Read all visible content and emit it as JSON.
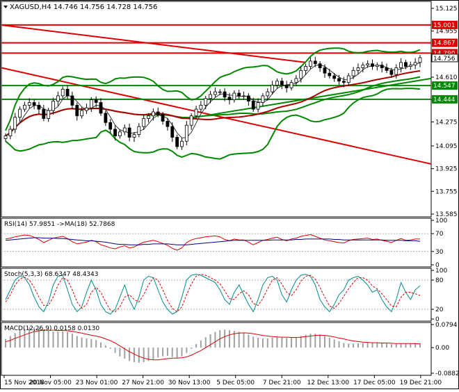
{
  "chart_data": [
    {
      "type": "candlestick",
      "title": "XAGUSD,H4",
      "ohlc_header": [
        "14.746",
        "14.756",
        "14.728",
        "14.756"
      ],
      "yticks": [
        "15.125",
        "14.955",
        "14.790",
        "14.610",
        "14.440",
        "14.275",
        "14.095",
        "13.925",
        "13.755",
        "13.585"
      ],
      "ylim": [
        13.585,
        15.125
      ],
      "current_price": "14.756",
      "horizontal_levels": [
        {
          "label": "15.001",
          "value": 15.001,
          "color": "#dd0000"
        },
        {
          "label": "14.867",
          "value": 14.867,
          "color": "#dd0000"
        },
        {
          "label": "14.790",
          "value": 14.79,
          "color": "#dd0000"
        },
        {
          "label": "14.547",
          "value": 14.547,
          "color": "#008800"
        },
        {
          "label": "14.444",
          "value": 14.444,
          "color": "#008800"
        }
      ],
      "close_series": [
        14.17,
        14.22,
        14.31,
        14.37,
        14.4,
        14.42,
        14.4,
        14.37,
        14.3,
        14.36,
        14.43,
        14.47,
        14.52,
        14.47,
        14.4,
        14.32,
        14.36,
        14.38,
        14.44,
        14.42,
        14.34,
        14.27,
        14.22,
        14.17,
        14.2,
        14.23,
        14.16,
        14.18,
        14.24,
        14.3,
        14.32,
        14.35,
        14.33,
        14.28,
        14.24,
        14.16,
        14.09,
        14.13,
        14.25,
        14.32,
        14.37,
        14.4,
        14.45,
        14.48,
        14.5,
        14.5,
        14.46,
        14.44,
        14.49,
        14.47,
        14.47,
        14.43,
        14.37,
        14.42,
        14.47,
        14.5,
        14.55,
        14.58,
        14.55,
        14.53,
        14.57,
        14.6,
        14.66,
        14.69,
        14.73,
        14.71,
        14.68,
        14.64,
        14.62,
        14.6,
        14.58,
        14.57,
        14.62,
        14.66,
        14.68,
        14.7,
        14.71,
        14.69,
        14.7,
        14.68,
        14.66,
        14.63,
        14.68,
        14.72,
        14.69,
        14.7,
        14.72,
        14.756
      ],
      "colors": {
        "bollinger": "#008800",
        "ma_fast": "#aa0000",
        "ma_slow": "#008800",
        "trendline": "#dd0000",
        "price_label": "#000000"
      }
    },
    {
      "type": "line",
      "title": "RSI(14) 57.9851 ->MA(18) 52.7868",
      "yticks": [
        "100",
        "70",
        "30",
        "0"
      ],
      "ylim": [
        0,
        100
      ],
      "series": [
        {
          "name": "RSI(14)",
          "values": [
            58,
            60,
            63,
            65,
            67,
            66,
            62,
            57,
            50,
            55,
            60,
            62,
            64,
            59,
            52,
            47,
            49,
            51,
            55,
            52,
            45,
            42,
            38,
            36,
            40,
            43,
            38,
            40,
            46,
            51,
            53,
            55,
            52,
            48,
            44,
            37,
            33,
            38,
            50,
            56,
            59,
            61,
            63,
            64,
            65,
            63,
            57,
            54,
            58,
            56,
            56,
            51,
            45,
            50,
            55,
            57,
            60,
            62,
            57,
            54,
            58,
            60,
            64,
            66,
            68,
            64,
            60,
            56,
            54,
            52,
            50,
            49,
            54,
            57,
            58,
            59,
            60,
            57,
            58,
            55,
            53,
            50,
            55,
            59,
            55,
            56,
            58,
            57.99
          ]
        },
        {
          "name": "MA(18)",
          "values": [
            55,
            56,
            57,
            58,
            59,
            60,
            61,
            61,
            60,
            60,
            60,
            59,
            59,
            58,
            57,
            56,
            55,
            54,
            54,
            53,
            52,
            51,
            49,
            47,
            46,
            46,
            45,
            45,
            45,
            46,
            46,
            47,
            47,
            47,
            47,
            46,
            45,
            45,
            45,
            46,
            47,
            48,
            49,
            50,
            51,
            52,
            53,
            54,
            55,
            55,
            55,
            55,
            55,
            55,
            55,
            55,
            56,
            56,
            56,
            56,
            56,
            57,
            57,
            58,
            58,
            58,
            58,
            58,
            58,
            57,
            57,
            56,
            56,
            56,
            56,
            56,
            56,
            56,
            56,
            56,
            55,
            55,
            55,
            55,
            54,
            54,
            54,
            52.79
          ]
        }
      ],
      "colors": {
        "rsi": "#dd0000",
        "ma": "#000088"
      }
    },
    {
      "type": "line",
      "title": "Stoch(5,3,3) 68.6347 48.4343",
      "yticks": [
        "100",
        "80",
        "20",
        "0"
      ],
      "ylim": [
        0,
        100
      ],
      "series": [
        {
          "name": "%K",
          "values": [
            40,
            60,
            80,
            88,
            85,
            70,
            45,
            25,
            15,
            35,
            70,
            88,
            90,
            60,
            30,
            15,
            25,
            55,
            80,
            60,
            30,
            15,
            10,
            20,
            45,
            70,
            40,
            20,
            45,
            80,
            88,
            85,
            60,
            35,
            20,
            10,
            15,
            45,
            80,
            90,
            92,
            90,
            85,
            80,
            75,
            60,
            40,
            30,
            55,
            70,
            50,
            30,
            15,
            40,
            70,
            85,
            88,
            80,
            50,
            35,
            60,
            80,
            90,
            92,
            88,
            70,
            40,
            25,
            15,
            30,
            50,
            60,
            80,
            85,
            88,
            80,
            70,
            55,
            60,
            40,
            25,
            15,
            40,
            75,
            55,
            40,
            60,
            68.63
          ]
        },
        {
          "name": "%D",
          "values": [
            35,
            50,
            70,
            82,
            86,
            80,
            65,
            45,
            28,
            28,
            45,
            70,
            85,
            80,
            60,
            35,
            22,
            30,
            55,
            65,
            55,
            35,
            18,
            15,
            25,
            45,
            50,
            40,
            35,
            50,
            70,
            85,
            80,
            60,
            38,
            22,
            15,
            25,
            50,
            72,
            88,
            92,
            90,
            85,
            80,
            72,
            58,
            42,
            40,
            52,
            58,
            50,
            32,
            28,
            42,
            62,
            80,
            85,
            72,
            55,
            48,
            60,
            78,
            88,
            90,
            82,
            65,
            45,
            27,
            22,
            32,
            47,
            62,
            75,
            85,
            85,
            80,
            68,
            62,
            52,
            40,
            27,
            25,
            45,
            55,
            55,
            52,
            48.43
          ]
        }
      ],
      "colors": {
        "k": "#008b8b",
        "d": "#dd0000"
      }
    },
    {
      "type": "bar",
      "title": "MACD(12,26,9) 0.0158 0.0130",
      "yticks": [
        "0.0794",
        "0.00",
        "-0.0882"
      ],
      "ylim": [
        -0.0882,
        0.0794
      ],
      "series": [
        {
          "name": "MACD",
          "values": [
            0.03,
            0.04,
            0.05,
            0.06,
            0.065,
            0.07,
            0.07,
            0.068,
            0.062,
            0.058,
            0.055,
            0.055,
            0.056,
            0.054,
            0.048,
            0.04,
            0.035,
            0.032,
            0.03,
            0.026,
            0.018,
            0.008,
            -0.004,
            -0.018,
            -0.03,
            -0.038,
            -0.046,
            -0.05,
            -0.052,
            -0.05,
            -0.046,
            -0.04,
            -0.034,
            -0.03,
            -0.028,
            -0.032,
            -0.035,
            -0.03,
            -0.018,
            -0.004,
            0.012,
            0.024,
            0.036,
            0.046,
            0.054,
            0.06,
            0.062,
            0.06,
            0.058,
            0.055,
            0.05,
            0.045,
            0.038,
            0.034,
            0.032,
            0.032,
            0.034,
            0.036,
            0.035,
            0.033,
            0.034,
            0.036,
            0.04,
            0.044,
            0.048,
            0.048,
            0.045,
            0.04,
            0.034,
            0.028,
            0.022,
            0.016,
            0.014,
            0.014,
            0.015,
            0.016,
            0.017,
            0.016,
            0.016,
            0.015,
            0.014,
            0.012,
            0.013,
            0.015,
            0.015,
            0.015,
            0.016,
            0.0158
          ]
        },
        {
          "name": "Signal",
          "values": [
            0.02,
            0.025,
            0.032,
            0.038,
            0.044,
            0.05,
            0.055,
            0.058,
            0.06,
            0.06,
            0.06,
            0.059,
            0.059,
            0.058,
            0.056,
            0.053,
            0.05,
            0.046,
            0.043,
            0.04,
            0.036,
            0.03,
            0.024,
            0.016,
            0.006,
            -0.004,
            -0.014,
            -0.022,
            -0.03,
            -0.036,
            -0.04,
            -0.042,
            -0.042,
            -0.04,
            -0.038,
            -0.036,
            -0.036,
            -0.035,
            -0.032,
            -0.026,
            -0.018,
            -0.01,
            0,
            0.01,
            0.02,
            0.03,
            0.038,
            0.044,
            0.048,
            0.05,
            0.051,
            0.05,
            0.048,
            0.045,
            0.042,
            0.04,
            0.038,
            0.037,
            0.036,
            0.036,
            0.035,
            0.035,
            0.036,
            0.038,
            0.04,
            0.042,
            0.043,
            0.042,
            0.04,
            0.037,
            0.033,
            0.03,
            0.026,
            0.023,
            0.021,
            0.019,
            0.018,
            0.017,
            0.017,
            0.016,
            0.016,
            0.015,
            0.014,
            0.014,
            0.014,
            0.014,
            0.0135,
            0.013
          ]
        }
      ],
      "colors": {
        "histogram": "#a0a0a0",
        "signal": "#dd0000"
      }
    }
  ],
  "x_axis": {
    "ticks": [
      "15 Nov 2018",
      "20 Nov 05:00",
      "23 Nov 01:00",
      "27 Nov 21:00",
      "30 Nov 13:00",
      "5 Dec 05:00",
      "7 Dec 21:00",
      "12 Dec 13:00",
      "17 Dec 05:00",
      "19 Dec 21:00"
    ]
  }
}
